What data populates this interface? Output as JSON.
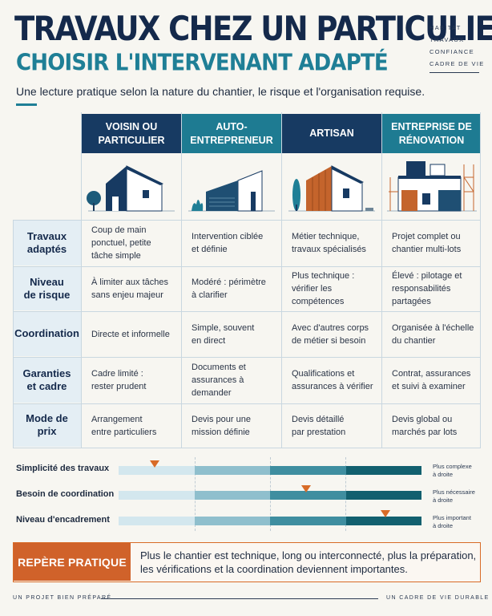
{
  "header": {
    "title": "TRAVAUX CHEZ UN PARTICULIER",
    "subtitle": "CHOISIR L'INTERVENANT ADAPTÉ",
    "lead": "Une lecture pratique selon la nature du chantier, le risque et l'organisation requise.",
    "tags": [
      "HABITAT",
      "TRAVAUX",
      "CONFIANCE",
      "CADRE DE VIE"
    ]
  },
  "colors": {
    "navy": "#14294b",
    "teal": "#1f7f96",
    "orange": "#d0622a",
    "header_navy": "#173a62",
    "header_teal": "#1e7b92"
  },
  "columns": [
    {
      "line1": "VOISIN OU",
      "line2": "PARTICULIER",
      "illustration": "house-with-tree-icon"
    },
    {
      "line1": "AUTO-",
      "line2": "ENTREPRENEUR",
      "illustration": "house-with-garage-icon"
    },
    {
      "line1": "ARTISAN",
      "line2": "",
      "illustration": "wood-clad-house-icon"
    },
    {
      "line1": "ENTREPRISE DE",
      "line2": "RÉNOVATION",
      "illustration": "building-with-scaffolding-icon"
    }
  ],
  "rows": [
    {
      "label1": "Travaux",
      "label2": "adaptés",
      "cells": [
        [
          "Coup de main",
          "ponctuel, petite",
          "tâche simple"
        ],
        [
          "Intervention ciblée",
          "et définie"
        ],
        [
          "Métier technique,",
          "travaux spécialisés"
        ],
        [
          "Projet complet ou",
          "chantier multi-lots"
        ]
      ]
    },
    {
      "label1": "Niveau",
      "label2": "de risque",
      "cells": [
        [
          "À limiter aux tâches",
          "sans enjeu majeur"
        ],
        [
          "Modéré : périmètre",
          "à clarifier"
        ],
        [
          "Plus technique :",
          "vérifier les compétences"
        ],
        [
          "Élevé : pilotage et",
          "responsabilités partagées"
        ]
      ]
    },
    {
      "label1": "Coordination",
      "label2": "",
      "cells": [
        [
          "Directe et informelle"
        ],
        [
          "Simple, souvent",
          "en direct"
        ],
        [
          "Avec d'autres corps",
          "de métier si besoin"
        ],
        [
          "Organisée à l'échelle",
          "du chantier"
        ]
      ]
    },
    {
      "label1": "Garanties",
      "label2": "et cadre",
      "cells": [
        [
          "Cadre limité :",
          "rester prudent"
        ],
        [
          "Documents et",
          "assurances à demander"
        ],
        [
          "Qualifications et",
          "assurances à vérifier"
        ],
        [
          "Contrat, assurances",
          "et suivi à examiner"
        ]
      ]
    },
    {
      "label1": "Mode de prix",
      "label2": "",
      "cells": [
        [
          "Arrangement",
          "entre particuliers"
        ],
        [
          "Devis pour une",
          "mission définie"
        ],
        [
          "Devis détaillé",
          "par prestation"
        ],
        [
          "Devis global ou",
          "marchés par lots"
        ]
      ]
    }
  ],
  "scales": [
    {
      "label": "Simplicité des travaux",
      "level": 0.12,
      "note1": "Plus complexe",
      "note2": "à droite"
    },
    {
      "label": "Besoin de coordination",
      "level": 0.62,
      "note1": "Plus nécessaire",
      "note2": "à droite"
    },
    {
      "label": "Niveau d'encadrement",
      "level": 0.88,
      "note1": "Plus important",
      "note2": "à droite"
    }
  ],
  "callout": {
    "tag": "REPÈRE PRATIQUE",
    "line1": "Plus le chantier est technique, long ou interconnecté, plus la préparation,",
    "line2": "les vérifications et la coordination deviennent importantes."
  },
  "footer": {
    "left": "UN PROJET BIEN PRÉPARÉ",
    "right": "UN CADRE DE VIE DURABLE"
  }
}
